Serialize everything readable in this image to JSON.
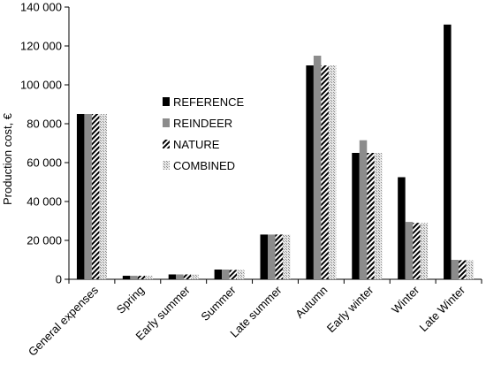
{
  "chart_data": {
    "type": "bar",
    "title": "",
    "xlabel": "",
    "ylabel": "Production cost, €",
    "ylim": [
      0,
      140000
    ],
    "yticks": [
      0,
      20000,
      40000,
      60000,
      80000,
      100000,
      120000,
      140000
    ],
    "ytick_labels": [
      "0",
      "20 000",
      "40 000",
      "60 000",
      "80 000",
      "100 000",
      "120 000",
      "140 000"
    ],
    "grid": false,
    "legend_placement": "center",
    "categories": [
      "General expenses",
      "Spring",
      "Early summer",
      "Summer",
      "Late summer",
      "Autumn",
      "Early winter",
      "Winter",
      "Late Winter"
    ],
    "series": [
      {
        "name": "REFERENCE",
        "pattern": "solid-black",
        "values": [
          85000,
          1800,
          2500,
          5000,
          23000,
          110000,
          65000,
          52500,
          131000
        ]
      },
      {
        "name": "REINDEER",
        "pattern": "solid-gray",
        "values": [
          85000,
          1800,
          2500,
          5000,
          23000,
          115000,
          71500,
          29500,
          10000
        ]
      },
      {
        "name": "NATURE",
        "pattern": "diagonal-hatch",
        "values": [
          85000,
          1800,
          2500,
          4800,
          23000,
          110000,
          65000,
          29000,
          9800
        ]
      },
      {
        "name": "COMBINED",
        "pattern": "light-dotted",
        "values": [
          85000,
          1800,
          2500,
          4800,
          23000,
          110000,
          65000,
          29000,
          9800
        ]
      }
    ],
    "colors": {
      "reference": "#000000",
      "reindeer": "#8c8c8c",
      "nature": "#000000",
      "combined": "#c8c8c8"
    }
  }
}
